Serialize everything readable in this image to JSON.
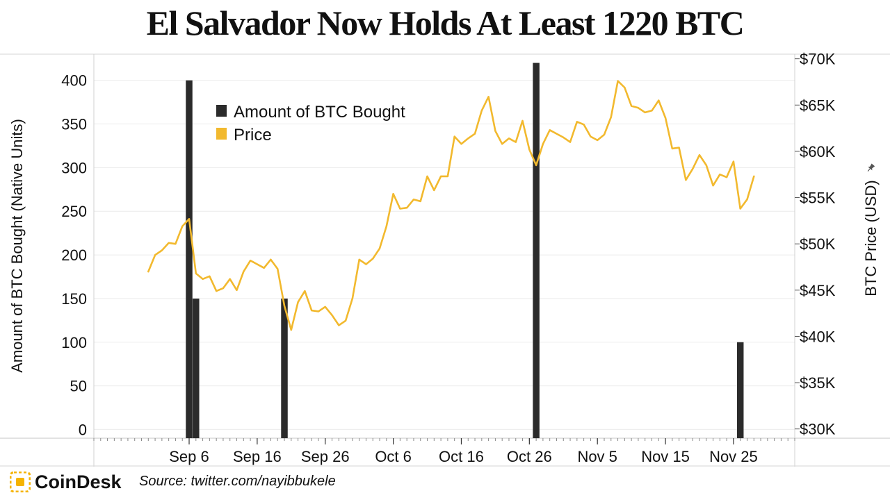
{
  "chart_data": {
    "type": "bar+line",
    "title": "El Salvador Now Holds At Least 1220 BTC",
    "bars": {
      "name": "Amount of BTC Bought",
      "color": "#2b2b2b",
      "dates": [
        "2021-09-06",
        "2021-09-07",
        "2021-09-20",
        "2021-10-27",
        "2021-11-26"
      ],
      "values": [
        400,
        150,
        150,
        420,
        100
      ]
    },
    "line": {
      "name": "Price",
      "color": "#f2b92e",
      "start_date": "2021-08-31",
      "values": [
        47000,
        48800,
        49300,
        50100,
        50000,
        51900,
        52700,
        46800,
        46200,
        46500,
        44900,
        45200,
        46200,
        45000,
        47000,
        48200,
        47800,
        47400,
        48300,
        47300,
        43300,
        40700,
        43700,
        44900,
        42800,
        42700,
        43200,
        42300,
        41200,
        41700,
        44100,
        48300,
        47800,
        48400,
        49500,
        51900,
        55400,
        53800,
        53900,
        54800,
        54600,
        57300,
        55800,
        57300,
        57300,
        61600,
        60800,
        61400,
        61900,
        64400,
        65900,
        62200,
        60800,
        61400,
        61000,
        63300,
        60200,
        58500,
        60800,
        62300,
        61900,
        61500,
        61000,
        63200,
        62900,
        61600,
        61200,
        61800,
        63700,
        67600,
        66900,
        64900,
        64700,
        64200,
        64400,
        65500,
        63600,
        60300,
        60400,
        56900,
        58100,
        59600,
        58500,
        56300,
        57500,
        57200,
        58900,
        53800,
        54800,
        57300
      ]
    },
    "y_left": {
      "label": "Amount of BTC Bought (Native Units)",
      "ticks": [
        0,
        50,
        100,
        150,
        200,
        250,
        300,
        350,
        400
      ],
      "range": [
        -10,
        430
      ]
    },
    "y_right": {
      "label": "BTC Price (USD)",
      "ticks": [
        30000,
        35000,
        40000,
        45000,
        50000,
        55000,
        60000,
        65000,
        70000
      ],
      "tick_labels": [
        "$30K",
        "$35K",
        "$40K",
        "$45K",
        "$50K",
        "$55K",
        "$60K",
        "$65K",
        "$70K"
      ],
      "range": [
        29000,
        70500
      ]
    },
    "x_axis": {
      "range": [
        "2021-08-23",
        "2021-12-04"
      ],
      "tick_dates": [
        "2021-09-06",
        "2021-09-16",
        "2021-09-26",
        "2021-10-06",
        "2021-10-16",
        "2021-10-26",
        "2021-11-05",
        "2021-11-15",
        "2021-11-25"
      ],
      "tick_labels": [
        "Sep 6",
        "Sep 16",
        "Sep 26",
        "Oct 6",
        "Oct 16",
        "Oct 26",
        "Nov 5",
        "Nov 15",
        "Nov 25"
      ]
    },
    "legend": {
      "position": "top-left-inside",
      "items": [
        "Amount of BTC Bought",
        "Price"
      ]
    },
    "grid": true
  },
  "footer": {
    "brand": "CoinDesk",
    "source": "Source: twitter.com/nayibbukele"
  },
  "icons": {
    "brand_logo": "coindesk-logo-icon",
    "axis_pin": "pin-icon"
  },
  "colors": {
    "brand": "#f5b301",
    "bar": "#2b2b2b",
    "line": "#f2b92e"
  }
}
